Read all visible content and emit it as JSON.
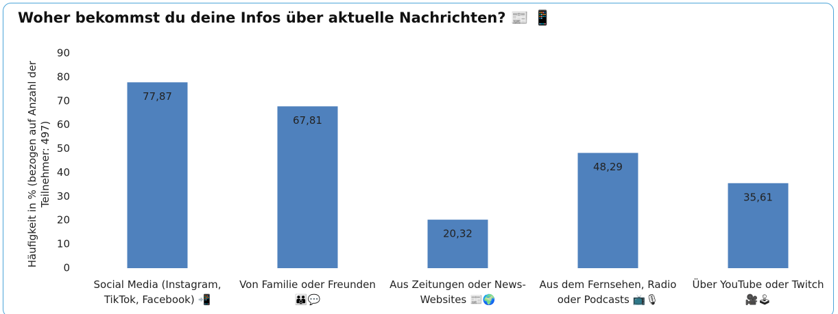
{
  "chart_data": {
    "type": "bar",
    "title": "Woher bekommst du deine Infos über aktuelle Nachrichten? 📰 📱",
    "ylabel": "Häufigkeit in % (bezogen auf Anzahl der Teilnehmer: 497)",
    "categories": [
      "Social Media (Instagram, TikTok, Facebook) 📲",
      "Von Familie oder Freunden 👪💬",
      "Aus Zeitungen oder News-Websites 📰🌍",
      "Aus dem Fernsehen, Radio oder Podcasts 📺🎙",
      "Über YouTube oder Twitch 🎥🕹"
    ],
    "values": [
      77.87,
      67.81,
      20.32,
      48.29,
      35.61
    ],
    "value_labels": [
      "77,87",
      "67,81",
      "20,32",
      "48,29",
      "35,61"
    ],
    "color": "#4f81bd",
    "ylim": [
      0,
      90
    ],
    "yticks": [
      0,
      10,
      20,
      30,
      40,
      50,
      60,
      70,
      80,
      90
    ],
    "grid": false
  }
}
